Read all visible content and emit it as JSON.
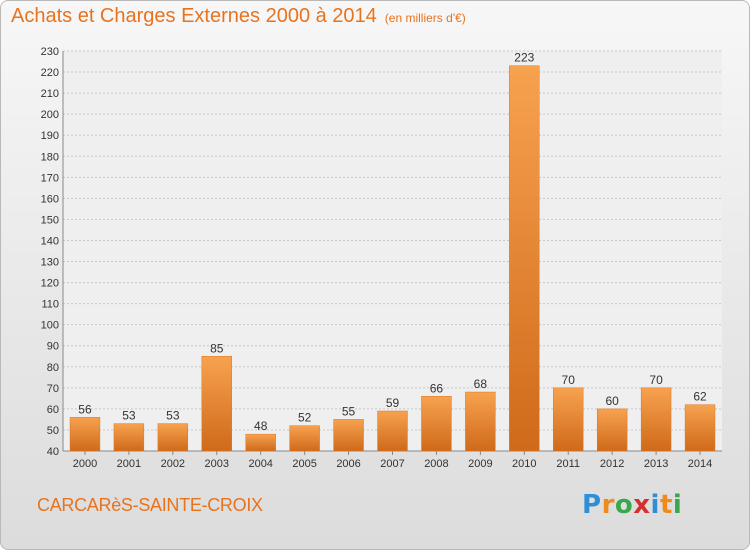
{
  "header": {
    "title": "Achats et Charges Externes 2000 à 2014",
    "unit_note": "(en milliers d'€)"
  },
  "footer": {
    "commune": "CARCARèS-SAINTE-CROIX",
    "logo": {
      "letters": [
        "P",
        "r",
        "o",
        "x",
        "i",
        "t",
        "i"
      ],
      "colors": [
        "#2e8fd6",
        "#f08a1c",
        "#3aa84a",
        "#d62f2f",
        "#2e8fd6",
        "#f08a1c",
        "#3aa84a"
      ]
    }
  },
  "colors": {
    "accent": "#e8731f",
    "bar_light": "#f7a24f",
    "bar_dark": "#cf6a1a"
  },
  "chart_data": {
    "type": "bar",
    "categories": [
      "2000",
      "2001",
      "2002",
      "2003",
      "2004",
      "2005",
      "2006",
      "2007",
      "2008",
      "2009",
      "2010",
      "2011",
      "2012",
      "2013",
      "2014"
    ],
    "values": [
      56,
      53,
      53,
      85,
      48,
      52,
      55,
      59,
      66,
      68,
      223,
      70,
      60,
      70,
      62
    ],
    "title": "Achats et Charges Externes 2000 à 2014",
    "xlabel": "",
    "ylabel": "",
    "ylim": [
      40,
      230
    ],
    "yticks": [
      40,
      50,
      60,
      70,
      80,
      90,
      100,
      110,
      120,
      130,
      140,
      150,
      160,
      170,
      180,
      190,
      200,
      210,
      220,
      230
    ],
    "grid": true,
    "data_labels": true
  }
}
